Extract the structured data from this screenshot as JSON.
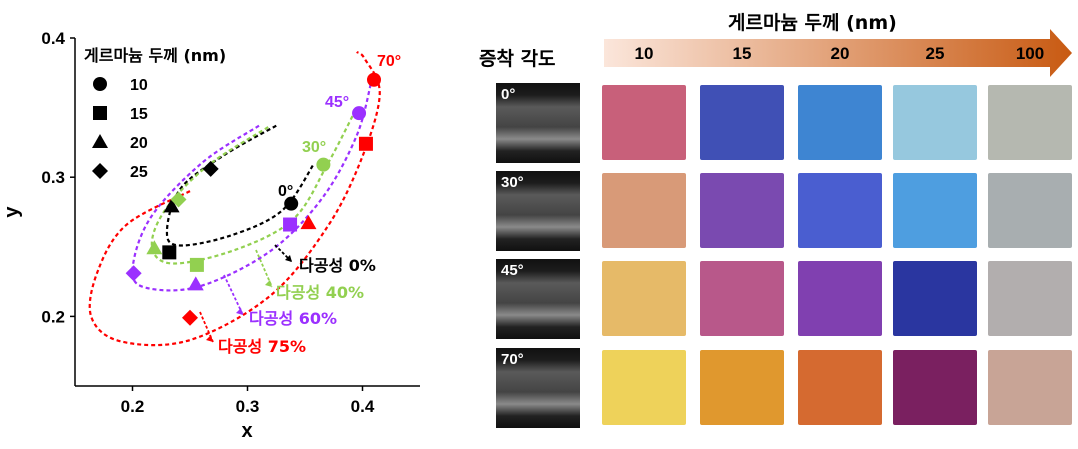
{
  "chart_data": {
    "type": "scatter",
    "xlabel": "x",
    "ylabel": "y",
    "xlim": [
      0.15,
      0.45
    ],
    "ylim": [
      0.15,
      0.4
    ],
    "xticks": [
      "0.2",
      "0.3",
      "0.4"
    ],
    "yticks": [
      "0.2",
      "0.3",
      "0.4"
    ],
    "legend_title": "게르마늄 두께 (nm)",
    "legend": [
      {
        "marker": "circle",
        "label": "10"
      },
      {
        "marker": "square",
        "label": "15"
      },
      {
        "marker": "triangle",
        "label": "20"
      },
      {
        "marker": "diamond",
        "label": "25"
      }
    ],
    "series": [
      {
        "name": "0°",
        "porosity": "다공성 0%",
        "color": "#000000",
        "points": [
          {
            "thickness": "10",
            "marker": "circle",
            "x": 0.338,
            "y": 0.281
          },
          {
            "thickness": "15",
            "marker": "square",
            "x": 0.232,
            "y": 0.246
          },
          {
            "thickness": "20",
            "marker": "triangle",
            "x": 0.234,
            "y": 0.279
          },
          {
            "thickness": "25",
            "marker": "diamond",
            "x": 0.268,
            "y": 0.306
          }
        ],
        "curve": [
          [
            0.325,
            0.337
          ],
          [
            0.28,
            0.316
          ],
          [
            0.242,
            0.292
          ],
          [
            0.23,
            0.262
          ],
          [
            0.24,
            0.251
          ],
          [
            0.285,
            0.258
          ],
          [
            0.33,
            0.276
          ],
          [
            0.358,
            0.31
          ]
        ]
      },
      {
        "name": "30°",
        "porosity": "다공성 40%",
        "color": "#92d050",
        "points": [
          {
            "thickness": "10",
            "marker": "circle",
            "x": 0.366,
            "y": 0.309
          },
          {
            "thickness": "15",
            "marker": "square",
            "x": 0.256,
            "y": 0.237
          },
          {
            "thickness": "20",
            "marker": "triangle",
            "x": 0.219,
            "y": 0.249
          },
          {
            "thickness": "25",
            "marker": "diamond",
            "x": 0.24,
            "y": 0.284
          }
        ],
        "curve": [
          [
            0.318,
            0.336
          ],
          [
            0.265,
            0.308
          ],
          [
            0.228,
            0.276
          ],
          [
            0.217,
            0.25
          ],
          [
            0.235,
            0.238
          ],
          [
            0.29,
            0.248
          ],
          [
            0.34,
            0.27
          ],
          [
            0.37,
            0.31
          ],
          [
            0.395,
            0.35
          ]
        ]
      },
      {
        "name": "45°",
        "porosity": "다공성 60%",
        "color": "#9b30ff",
        "points": [
          {
            "thickness": "10",
            "marker": "circle",
            "x": 0.397,
            "y": 0.346
          },
          {
            "thickness": "15",
            "marker": "square",
            "x": 0.337,
            "y": 0.266
          },
          {
            "thickness": "20",
            "marker": "triangle",
            "x": 0.255,
            "y": 0.223
          },
          {
            "thickness": "25",
            "marker": "diamond",
            "x": 0.201,
            "y": 0.231
          }
        ],
        "curve": [
          [
            0.31,
            0.337
          ],
          [
            0.26,
            0.31
          ],
          [
            0.215,
            0.27
          ],
          [
            0.2,
            0.232
          ],
          [
            0.215,
            0.22
          ],
          [
            0.26,
            0.222
          ],
          [
            0.32,
            0.247
          ],
          [
            0.365,
            0.285
          ],
          [
            0.395,
            0.33
          ],
          [
            0.408,
            0.37
          ]
        ]
      },
      {
        "name": "70°",
        "porosity": "다공성 75%",
        "color": "#ff0000",
        "points": [
          {
            "thickness": "10",
            "marker": "circle",
            "x": 0.41,
            "y": 0.37
          },
          {
            "thickness": "15",
            "marker": "square",
            "x": 0.403,
            "y": 0.324
          },
          {
            "thickness": "20",
            "marker": "triangle",
            "x": 0.353,
            "y": 0.267
          },
          {
            "thickness": "25",
            "marker": "diamond",
            "x": 0.25,
            "y": 0.199
          }
        ],
        "curve": [
          [
            0.25,
            0.29
          ],
          [
            0.195,
            0.266
          ],
          [
            0.17,
            0.233
          ],
          [
            0.164,
            0.2
          ],
          [
            0.19,
            0.182
          ],
          [
            0.25,
            0.183
          ],
          [
            0.32,
            0.215
          ],
          [
            0.37,
            0.265
          ],
          [
            0.4,
            0.315
          ],
          [
            0.415,
            0.36
          ],
          [
            0.402,
            0.385
          ],
          [
            0.395,
            0.39
          ]
        ]
      }
    ]
  },
  "panel": {
    "deposition_angle_title": "증착 각도",
    "thickness_title": "게르마늄 두께 (nm)",
    "thickness_labels": [
      "10",
      "15",
      "20",
      "25",
      "100"
    ],
    "arrow_colors": [
      "#fbe6db",
      "#c85a12"
    ],
    "rows": [
      {
        "angle": "0°",
        "colors": [
          "#c8607a",
          "#4050b5",
          "#3e85d2",
          "#96c8de",
          "#b5b8b0"
        ]
      },
      {
        "angle": "30°",
        "colors": [
          "#d89a78",
          "#7a4ab0",
          "#4a5ed0",
          "#4e9ee0",
          "#a8aeb0"
        ]
      },
      {
        "angle": "45°",
        "colors": [
          "#e6ba68",
          "#b8588a",
          "#8040b0",
          "#2a36a0",
          "#b2aeae"
        ]
      },
      {
        "angle": "70°",
        "colors": [
          "#eed25a",
          "#e0982e",
          "#d56a30",
          "#7a2060",
          "#c8a496"
        ]
      }
    ]
  }
}
